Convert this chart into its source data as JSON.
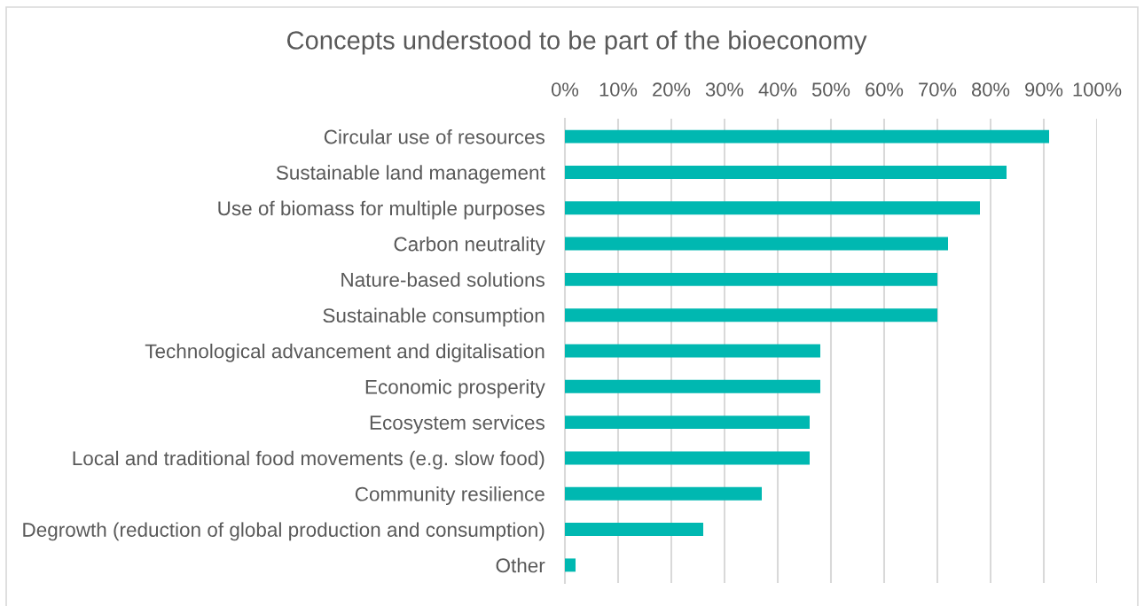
{
  "chart_data": {
    "type": "bar",
    "orientation": "horizontal",
    "title": "Concepts understood to be part of the bioeconomy",
    "categories": [
      "Circular use of resources",
      "Sustainable land management",
      "Use of biomass for multiple purposes",
      "Carbon neutrality",
      "Nature-based solutions",
      "Sustainable consumption",
      "Technological advancement and digitalisation",
      "Economic prosperity",
      "Ecosystem services",
      "Local and traditional food movements (e.g. slow food)",
      "Community resilience",
      "Degrowth (reduction of global production and consumption)",
      "Other"
    ],
    "values": [
      91,
      83,
      78,
      72,
      70,
      70,
      48,
      48,
      46,
      46,
      37,
      26,
      2
    ],
    "color": "#00b8b1",
    "xlim": [
      0,
      100
    ],
    "xticks": [
      {
        "value": 0,
        "label": "0%"
      },
      {
        "value": 10,
        "label": "10%"
      },
      {
        "value": 20,
        "label": "20%"
      },
      {
        "value": 30,
        "label": "30%"
      },
      {
        "value": 40,
        "label": "40%"
      },
      {
        "value": 50,
        "label": "50%"
      },
      {
        "value": 60,
        "label": "60%"
      },
      {
        "value": 70,
        "label": "70%"
      },
      {
        "value": 80,
        "label": "80%"
      },
      {
        "value": 90,
        "label": "90%"
      },
      {
        "value": 100,
        "label": "100%"
      }
    ],
    "grid": "x"
  }
}
